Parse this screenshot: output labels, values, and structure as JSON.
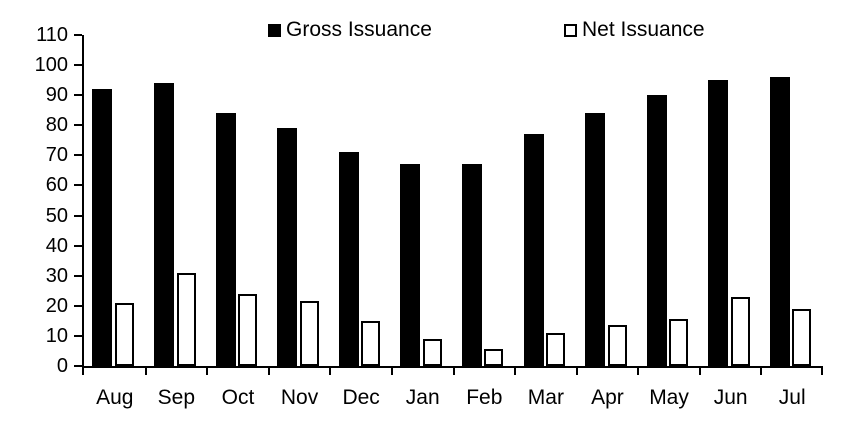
{
  "chart_data": {
    "type": "bar",
    "title": "",
    "categories": [
      "Aug",
      "Sep",
      "Oct",
      "Nov",
      "Dec",
      "Jan",
      "Feb",
      "Mar",
      "Apr",
      "May",
      "Jun",
      "Jul"
    ],
    "series": [
      {
        "name": "Gross Issuance",
        "values": [
          92,
          94,
          84,
          79,
          71,
          67,
          67,
          77,
          84,
          90,
          95,
          96
        ],
        "fill": "#000000"
      },
      {
        "name": "Net Issuance",
        "values": [
          21,
          31,
          24,
          21.5,
          15,
          9,
          5.5,
          11,
          13.5,
          15.5,
          23,
          19
        ],
        "fill": "#ffffff",
        "border": "#000000"
      }
    ],
    "ylabel": "",
    "xlabel": "",
    "ylim": [
      0,
      110
    ],
    "ytick_step": 10,
    "yticks": [
      0,
      10,
      20,
      30,
      40,
      50,
      60,
      70,
      80,
      90,
      100,
      110
    ],
    "grid": false,
    "legend_position": "top"
  },
  "colors": {
    "gross_bar": "#000000",
    "net_bar_fill": "#ffffff",
    "net_bar_border": "#000000",
    "axis": "#000000",
    "background": "#ffffff",
    "text": "#000000"
  }
}
